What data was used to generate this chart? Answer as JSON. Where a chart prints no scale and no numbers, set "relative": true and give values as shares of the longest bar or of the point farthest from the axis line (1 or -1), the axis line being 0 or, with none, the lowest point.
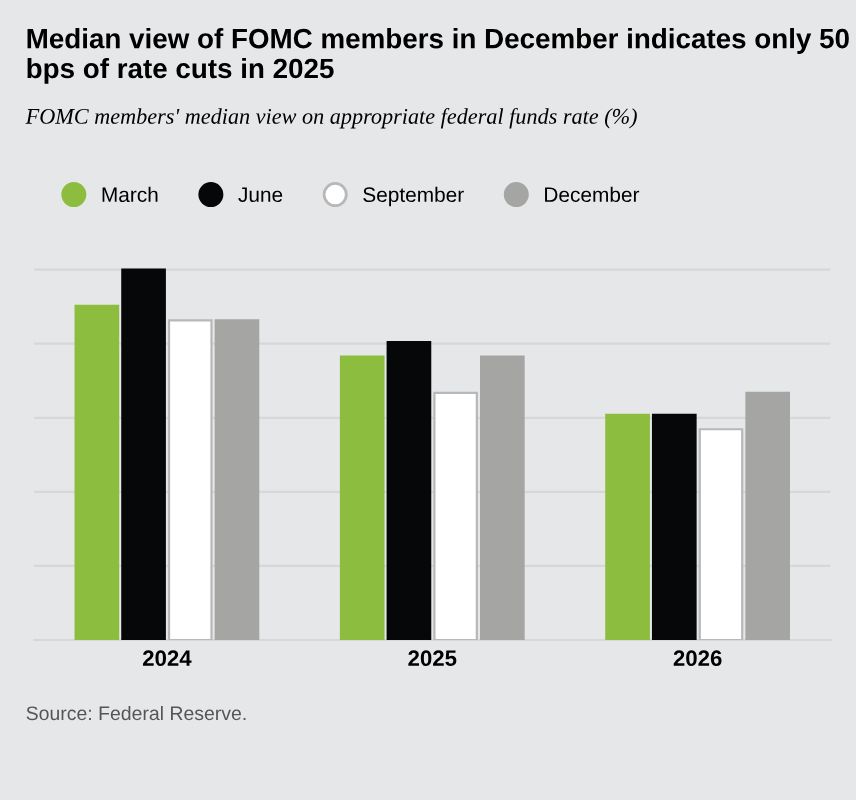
{
  "chart_data": {
    "type": "bar",
    "title": "Median view of FOMC members in December indicates only 50 bps of rate cuts in 2025",
    "subtitle": "FOMC members' median view on appropriate federal funds rate (%)",
    "categories": [
      "2024",
      "2025",
      "2026"
    ],
    "relative": true,
    "grid": "y",
    "legend": "top left",
    "series": [
      {
        "name": "March",
        "color": "#8cbd3f",
        "values": [
          0.902,
          0.765,
          0.608
        ]
      },
      {
        "name": "June",
        "color": "#050708",
        "values": [
          1,
          0.804,
          0.608
        ]
      },
      {
        "name": "September",
        "color": "#ffffff",
        "values": [
          0.863,
          0.667,
          0.569
        ]
      },
      {
        "name": "December",
        "color": "#a5a5a3",
        "values": [
          0.863,
          0.765,
          0.667
        ]
      }
    ],
    "annotations": [
      "Source: Federal Reserve."
    ]
  }
}
